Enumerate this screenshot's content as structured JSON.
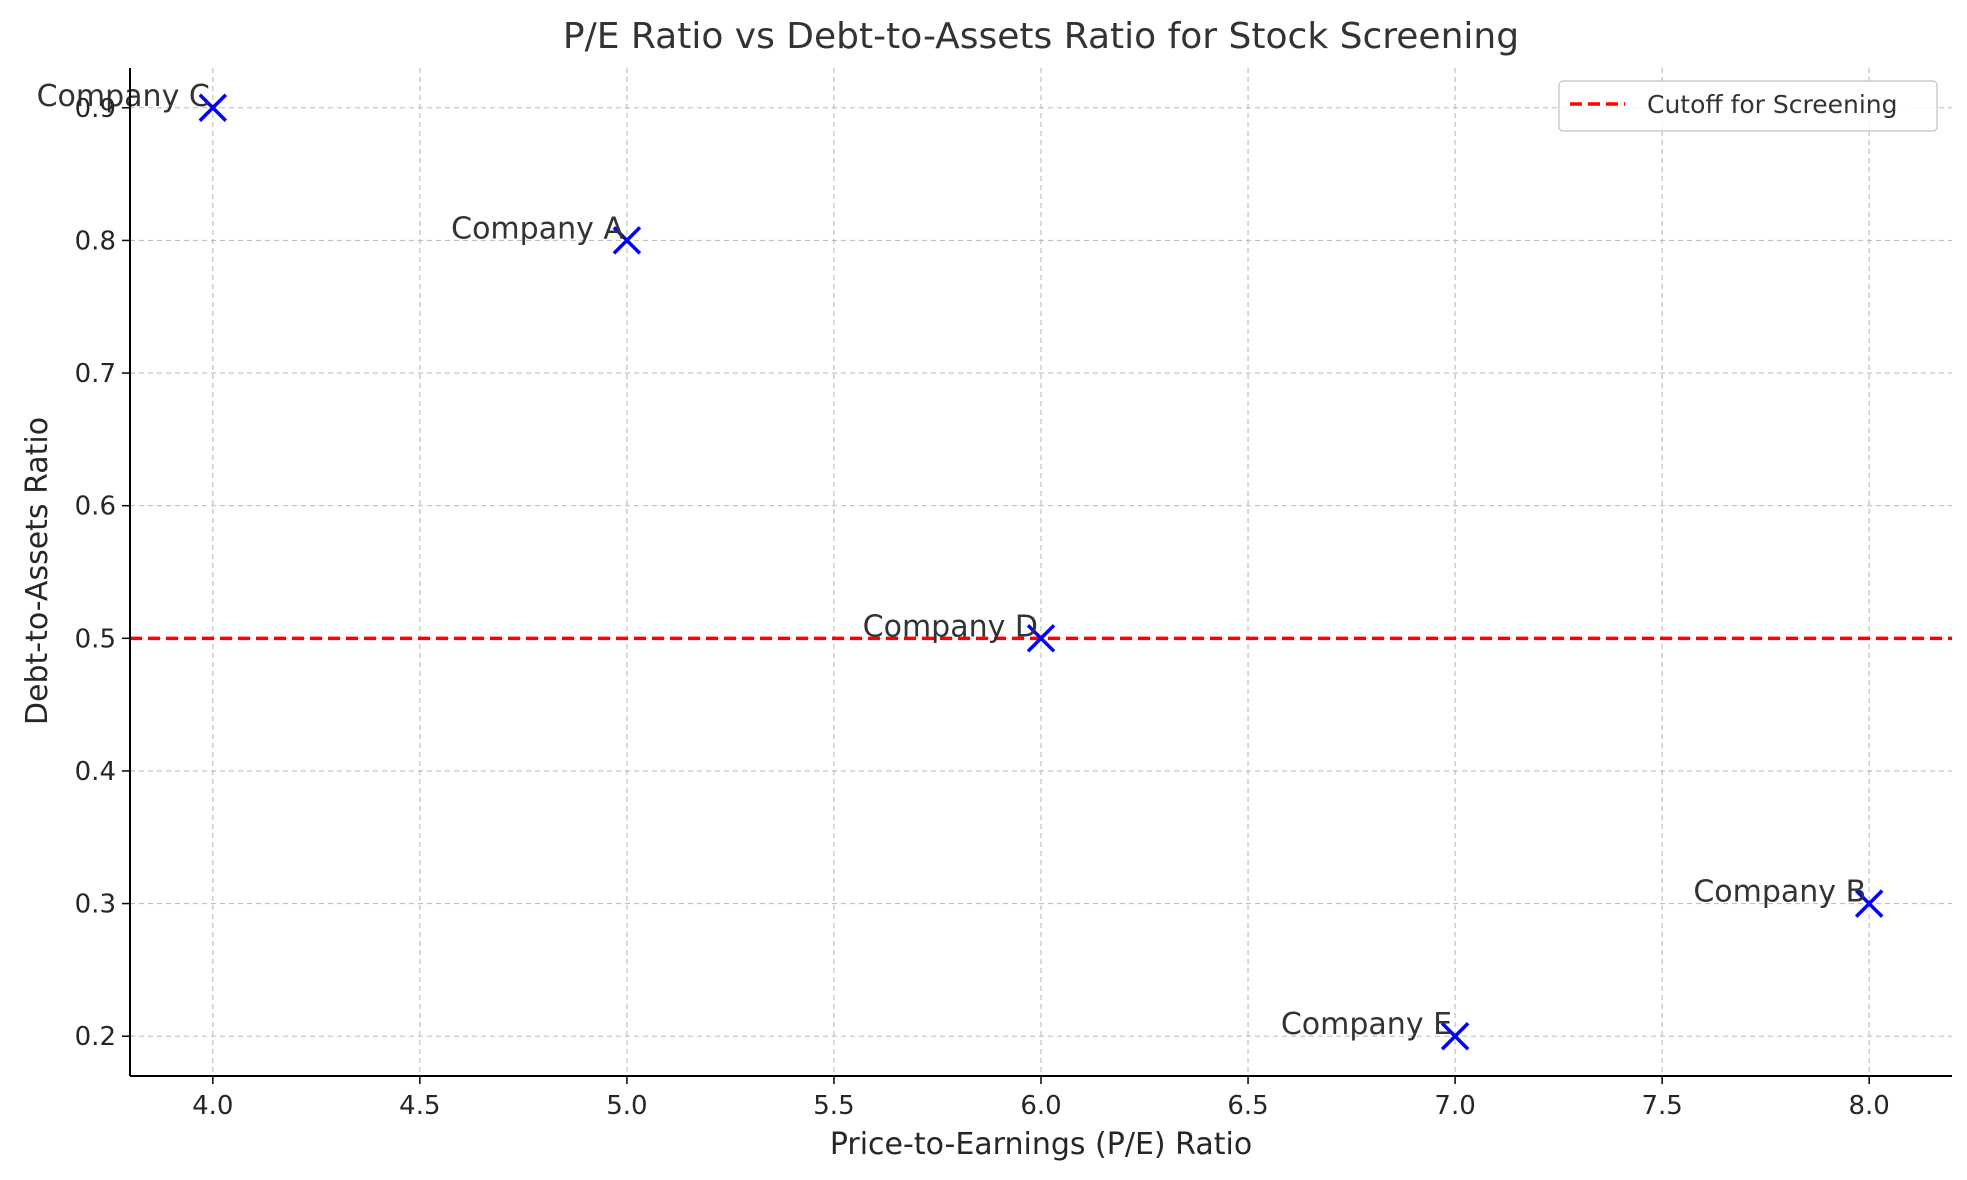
{
  "chart_data": {
    "type": "scatter",
    "title": "P/E Ratio vs Debt-to-Assets Ratio for Stock Screening",
    "xlabel": "Price-to-Earnings (P/E) Ratio",
    "ylabel": "Debt-to-Assets Ratio",
    "xlim": [
      3.8,
      8.2
    ],
    "ylim": [
      0.17,
      0.93
    ],
    "xticks": [
      "4.0",
      "4.5",
      "5.0",
      "5.5",
      "6.0",
      "6.5",
      "7.0",
      "7.5",
      "8.0"
    ],
    "yticks": [
      "0.2",
      "0.3",
      "0.4",
      "0.5",
      "0.6",
      "0.7",
      "0.8",
      "0.9"
    ],
    "grid": true,
    "legend_position": "top-right",
    "marker": "x",
    "marker_color": "#0000ff",
    "points": [
      {
        "label": "Company A",
        "x": 5.0,
        "y": 0.8
      },
      {
        "label": "Company B",
        "x": 8.0,
        "y": 0.3
      },
      {
        "label": "Company C",
        "x": 4.0,
        "y": 0.9
      },
      {
        "label": "Company D",
        "x": 6.0,
        "y": 0.5
      },
      {
        "label": "Company E",
        "x": 7.0,
        "y": 0.2
      }
    ],
    "reference_line": {
      "label": "Cutoff for Screening",
      "orientation": "horizontal",
      "y": 0.5,
      "color": "#ff0000",
      "style": "dashed"
    }
  }
}
